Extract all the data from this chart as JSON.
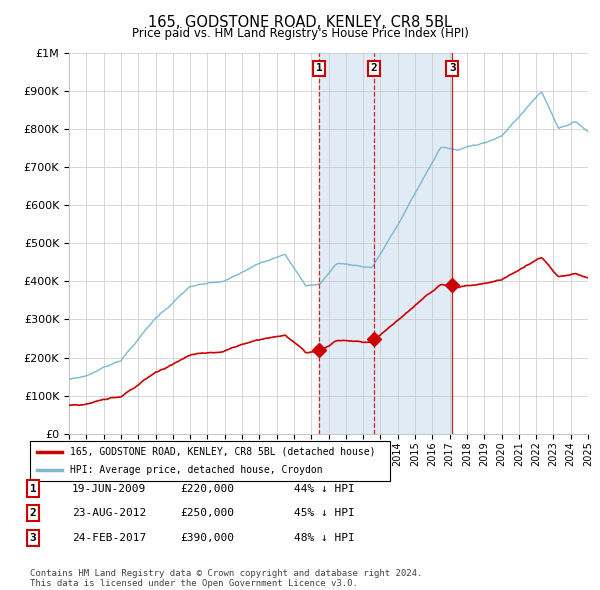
{
  "title": "165, GODSTONE ROAD, KENLEY, CR8 5BL",
  "subtitle": "Price paid vs. HM Land Registry's House Price Index (HPI)",
  "x_start_year": 1995,
  "x_end_year": 2025,
  "y_min": 0,
  "y_max": 1000000,
  "y_ticks": [
    0,
    100000,
    200000,
    300000,
    400000,
    500000,
    600000,
    700000,
    800000,
    900000,
    1000000
  ],
  "y_tick_labels": [
    "£0",
    "£100K",
    "£200K",
    "£300K",
    "£400K",
    "£500K",
    "£600K",
    "£700K",
    "£800K",
    "£900K",
    "£1M"
  ],
  "sale_times": [
    2009.46,
    2012.64,
    2017.15
  ],
  "sale_prices": [
    220000,
    250000,
    390000
  ],
  "sale_labels": [
    "1",
    "2",
    "3"
  ],
  "legend_red": "165, GODSTONE ROAD, KENLEY, CR8 5BL (detached house)",
  "legend_blue": "HPI: Average price, detached house, Croydon",
  "table_rows": [
    [
      "1",
      "19-JUN-2009",
      "£220,000",
      "44% ↓ HPI"
    ],
    [
      "2",
      "23-AUG-2012",
      "£250,000",
      "45% ↓ HPI"
    ],
    [
      "3",
      "24-FEB-2017",
      "£390,000",
      "48% ↓ HPI"
    ]
  ],
  "footer": "Contains HM Land Registry data © Crown copyright and database right 2024.\nThis data is licensed under the Open Government Licence v3.0.",
  "red_color": "#cc0000",
  "blue_line_color": "#7ab8d4",
  "shaded_color": "#dce8f5",
  "grid_color": "#c8c8c8"
}
